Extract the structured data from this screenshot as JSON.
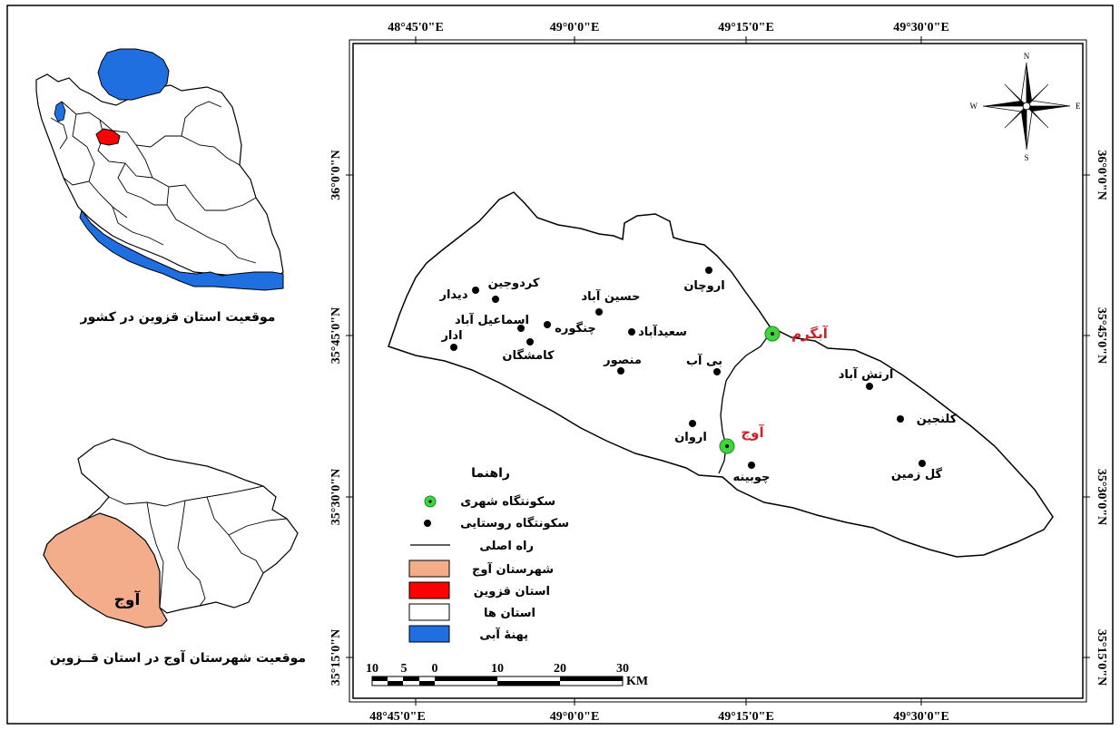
{
  "grid": {
    "lon_labels": [
      "48°45'0\"E",
      "49°0'0\"E",
      "49°15'0\"E",
      "49°30'0\"E"
    ],
    "lat_labels": [
      "36°0'0\"N",
      "35°45'0\"N",
      "35°30'0\"N",
      "35°15'0\"N"
    ]
  },
  "compass": {
    "n": "N",
    "s": "S",
    "e": "E",
    "w": "W"
  },
  "main_map": {
    "cities": [
      {
        "name": "آبگرم"
      },
      {
        "name": "آوج"
      }
    ],
    "villages": [
      {
        "name": "کردوجین"
      },
      {
        "name": "دیدار"
      },
      {
        "name": "اسماعیل آباد"
      },
      {
        "name": "چنگوره"
      },
      {
        "name": "کامشگان"
      },
      {
        "name": "ادار"
      },
      {
        "name": "حسین آباد"
      },
      {
        "name": "سعیدآباد"
      },
      {
        "name": "اروچان"
      },
      {
        "name": "منصور"
      },
      {
        "name": "بی آب"
      },
      {
        "name": "اروان"
      },
      {
        "name": "چوبینه"
      },
      {
        "name": "ارتش آباد"
      },
      {
        "name": "کلنجین"
      },
      {
        "name": "گل زمین"
      }
    ]
  },
  "legend": {
    "title": "راهنما",
    "items": [
      {
        "label": "سکونتگاه شهری",
        "symbol": "urban",
        "color": "#3dd63d"
      },
      {
        "label": "سکونتگاه روستایی",
        "symbol": "rural",
        "color": "#000000"
      },
      {
        "label": "راه اصلی",
        "symbol": "road",
        "color": "#000000"
      },
      {
        "label": "شهرستان آوج",
        "symbol": "box",
        "color": "#f4ad8a"
      },
      {
        "label": "استان قزوین",
        "symbol": "box",
        "color": "#ff0000"
      },
      {
        "label": "استان ها",
        "symbol": "box",
        "color": "#ffffff"
      },
      {
        "label": "پهنۀ آبی",
        "symbol": "box",
        "color": "#1f6fe0"
      }
    ]
  },
  "scale_bar": {
    "labels": [
      "10",
      "5",
      "0",
      "10",
      "20",
      "30"
    ],
    "unit": "KM"
  },
  "inset_iran": {
    "caption": "موقعیت استان قزوین در کشور"
  },
  "inset_qazvin": {
    "label": "آوج",
    "caption": "موقعیت شهرستان آوج در استان قــزوین"
  }
}
